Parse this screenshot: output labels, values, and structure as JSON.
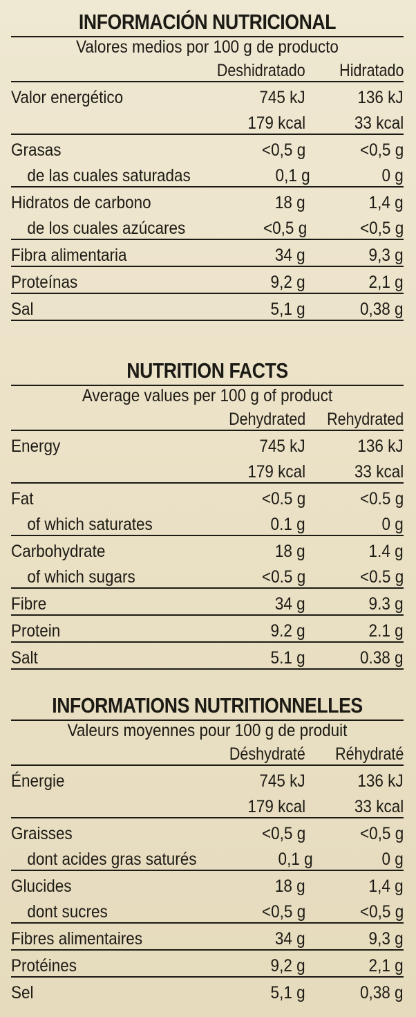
{
  "sections": [
    {
      "title": "INFORMACIÓN NUTRICIONAL",
      "subtitle": "Valores medios por 100 g de producto",
      "col1": "Deshidratado",
      "col2": "Hidratado",
      "rows": [
        {
          "label": "Valor energético",
          "v1": "745 kJ",
          "v2": "136 kJ"
        },
        {
          "label": "",
          "v1": "179 kcal",
          "v2": "33 kcal"
        },
        {
          "label": "Grasas",
          "v1": "<0,5 g",
          "v2": "<0,5 g"
        },
        {
          "label": "de las cuales saturadas",
          "v1": "0,1 g",
          "v2": "0 g"
        },
        {
          "label": "Hidratos de carbono",
          "v1": "18 g",
          "v2": "1,4 g"
        },
        {
          "label": "de los cuales azúcares",
          "v1": "<0,5 g",
          "v2": "<0,5 g"
        },
        {
          "label": "Fibra alimentaria",
          "v1": "34 g",
          "v2": "9,3 g"
        },
        {
          "label": "Proteínas",
          "v1": "9,2 g",
          "v2": "2,1 g"
        },
        {
          "label": "Sal",
          "v1": "5,1 g",
          "v2": "0,38 g"
        }
      ]
    },
    {
      "title": "NUTRITION FACTS",
      "subtitle": "Average values per 100 g of product",
      "col1": "Dehydrated",
      "col2": "Rehydrated",
      "rows": [
        {
          "label": "Energy",
          "v1": "745 kJ",
          "v2": "136 kJ"
        },
        {
          "label": "",
          "v1": "179 kcal",
          "v2": "33 kcal"
        },
        {
          "label": "Fat",
          "v1": "<0.5 g",
          "v2": "<0.5 g"
        },
        {
          "label": "of which saturates",
          "v1": "0.1 g",
          "v2": "0 g"
        },
        {
          "label": "Carbohydrate",
          "v1": "18 g",
          "v2": "1.4 g"
        },
        {
          "label": "of which sugars",
          "v1": "<0.5 g",
          "v2": "<0.5 g"
        },
        {
          "label": "Fibre",
          "v1": "34 g",
          "v2": "9.3 g"
        },
        {
          "label": "Protein",
          "v1": "9.2 g",
          "v2": "2.1 g"
        },
        {
          "label": "Salt",
          "v1": "5.1 g",
          "v2": "0.38 g"
        }
      ]
    },
    {
      "title": "INFORMATIONS NUTRITIONNELLES",
      "subtitle": "Valeurs moyennes pour 100 g de produit",
      "col1": "Déshydraté",
      "col2": "Réhydraté",
      "rows": [
        {
          "label": "Énergie",
          "v1": "745 kJ",
          "v2": "136 kJ"
        },
        {
          "label": "",
          "v1": "179 kcal",
          "v2": "33 kcal"
        },
        {
          "label": "Graisses",
          "v1": "<0,5 g",
          "v2": "<0,5 g"
        },
        {
          "label": "dont acides gras saturés",
          "v1": "0,1 g",
          "v2": "0 g"
        },
        {
          "label": "Glucides",
          "v1": "18 g",
          "v2": "1,4 g"
        },
        {
          "label": "dont sucres",
          "v1": "<0,5 g",
          "v2": "<0,5 g"
        },
        {
          "label": "Fibres alimentaires",
          "v1": "34 g",
          "v2": "9,3 g"
        },
        {
          "label": "Protéines",
          "v1": "9,2 g",
          "v2": "2,1 g"
        },
        {
          "label": "Sel",
          "v1": "5,1 g",
          "v2": "0,38 g"
        }
      ]
    }
  ]
}
